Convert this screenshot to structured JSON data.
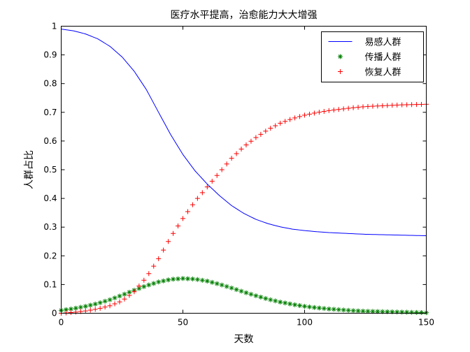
{
  "chart_data": {
    "type": "line",
    "title": "医疗水平提高，治愈能力大大增强",
    "xlabel": "天数",
    "ylabel": "人群占比",
    "xlim": [
      0,
      150
    ],
    "ylim": [
      0,
      1
    ],
    "xticks": [
      "0",
      "50",
      "100",
      "150"
    ],
    "yticks": [
      "0",
      "0.1",
      "0.2",
      "0.3",
      "0.4",
      "0.5",
      "0.6",
      "0.7",
      "0.8",
      "0.9",
      "1"
    ],
    "grid": false,
    "legend_position": "top-right",
    "series": [
      {
        "name": "易感人群",
        "style": "line",
        "color": "#0000ff",
        "x": [
          0,
          5,
          10,
          15,
          20,
          25,
          30,
          35,
          40,
          45,
          50,
          55,
          60,
          65,
          70,
          75,
          80,
          85,
          90,
          95,
          100,
          105,
          110,
          115,
          120,
          125,
          130,
          135,
          140,
          145,
          150
        ],
        "y": [
          0.99,
          0.984,
          0.973,
          0.956,
          0.93,
          0.893,
          0.843,
          0.779,
          0.7,
          0.622,
          0.553,
          0.496,
          0.45,
          0.41,
          0.375,
          0.348,
          0.327,
          0.312,
          0.301,
          0.293,
          0.288,
          0.284,
          0.281,
          0.279,
          0.277,
          0.275,
          0.274,
          0.273,
          0.272,
          0.271,
          0.27
        ]
      },
      {
        "name": "传播人群",
        "style": "marker-star",
        "color": "#008000",
        "x": [
          0,
          5,
          10,
          15,
          20,
          25,
          30,
          35,
          40,
          45,
          50,
          55,
          60,
          65,
          70,
          75,
          80,
          85,
          90,
          95,
          100,
          105,
          110,
          115,
          120,
          125,
          130,
          135,
          140,
          145,
          150
        ],
        "y": [
          0.01,
          0.016,
          0.024,
          0.034,
          0.047,
          0.063,
          0.08,
          0.096,
          0.109,
          0.118,
          0.121,
          0.119,
          0.112,
          0.101,
          0.088,
          0.074,
          0.061,
          0.049,
          0.039,
          0.031,
          0.024,
          0.019,
          0.015,
          0.012,
          0.009,
          0.007,
          0.006,
          0.005,
          0.004,
          0.003,
          0.002
        ]
      },
      {
        "name": "恢复人群",
        "style": "marker-plus",
        "color": "#ff0000",
        "x": [
          0,
          5,
          10,
          15,
          20,
          25,
          30,
          35,
          40,
          45,
          50,
          55,
          60,
          65,
          70,
          75,
          80,
          85,
          90,
          95,
          100,
          105,
          110,
          115,
          120,
          125,
          130,
          135,
          140,
          145,
          150
        ],
        "y": [
          0.0,
          0.003,
          0.008,
          0.015,
          0.026,
          0.043,
          0.075,
          0.125,
          0.19,
          0.265,
          0.33,
          0.39,
          0.44,
          0.49,
          0.54,
          0.58,
          0.612,
          0.64,
          0.662,
          0.678,
          0.69,
          0.699,
          0.706,
          0.711,
          0.716,
          0.72,
          0.722,
          0.724,
          0.726,
          0.727,
          0.728
        ]
      }
    ]
  }
}
